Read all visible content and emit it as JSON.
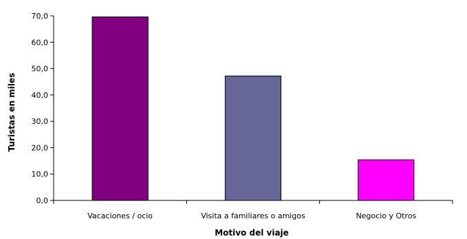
{
  "chart_data": {
    "type": "bar",
    "title": "",
    "xlabel": "Motivo del viaje",
    "ylabel": "Turistas en miles",
    "categories": [
      "Vacaciones / ocio",
      "Visita a familiares o amigos",
      "Negocio y Otros"
    ],
    "values": [
      69.6,
      47.2,
      15.4
    ],
    "colors": [
      "#800080",
      "#666699",
      "#ff00ff"
    ],
    "ylim": [
      0,
      70
    ],
    "yticks": [
      0,
      10,
      20,
      30,
      40,
      50,
      60,
      70
    ],
    "ytick_labels": [
      "0,0",
      "10,0",
      "20,0",
      "30,0",
      "40,0",
      "50,0",
      "60,0",
      "70,0"
    ],
    "grid": false,
    "legend": false
  }
}
